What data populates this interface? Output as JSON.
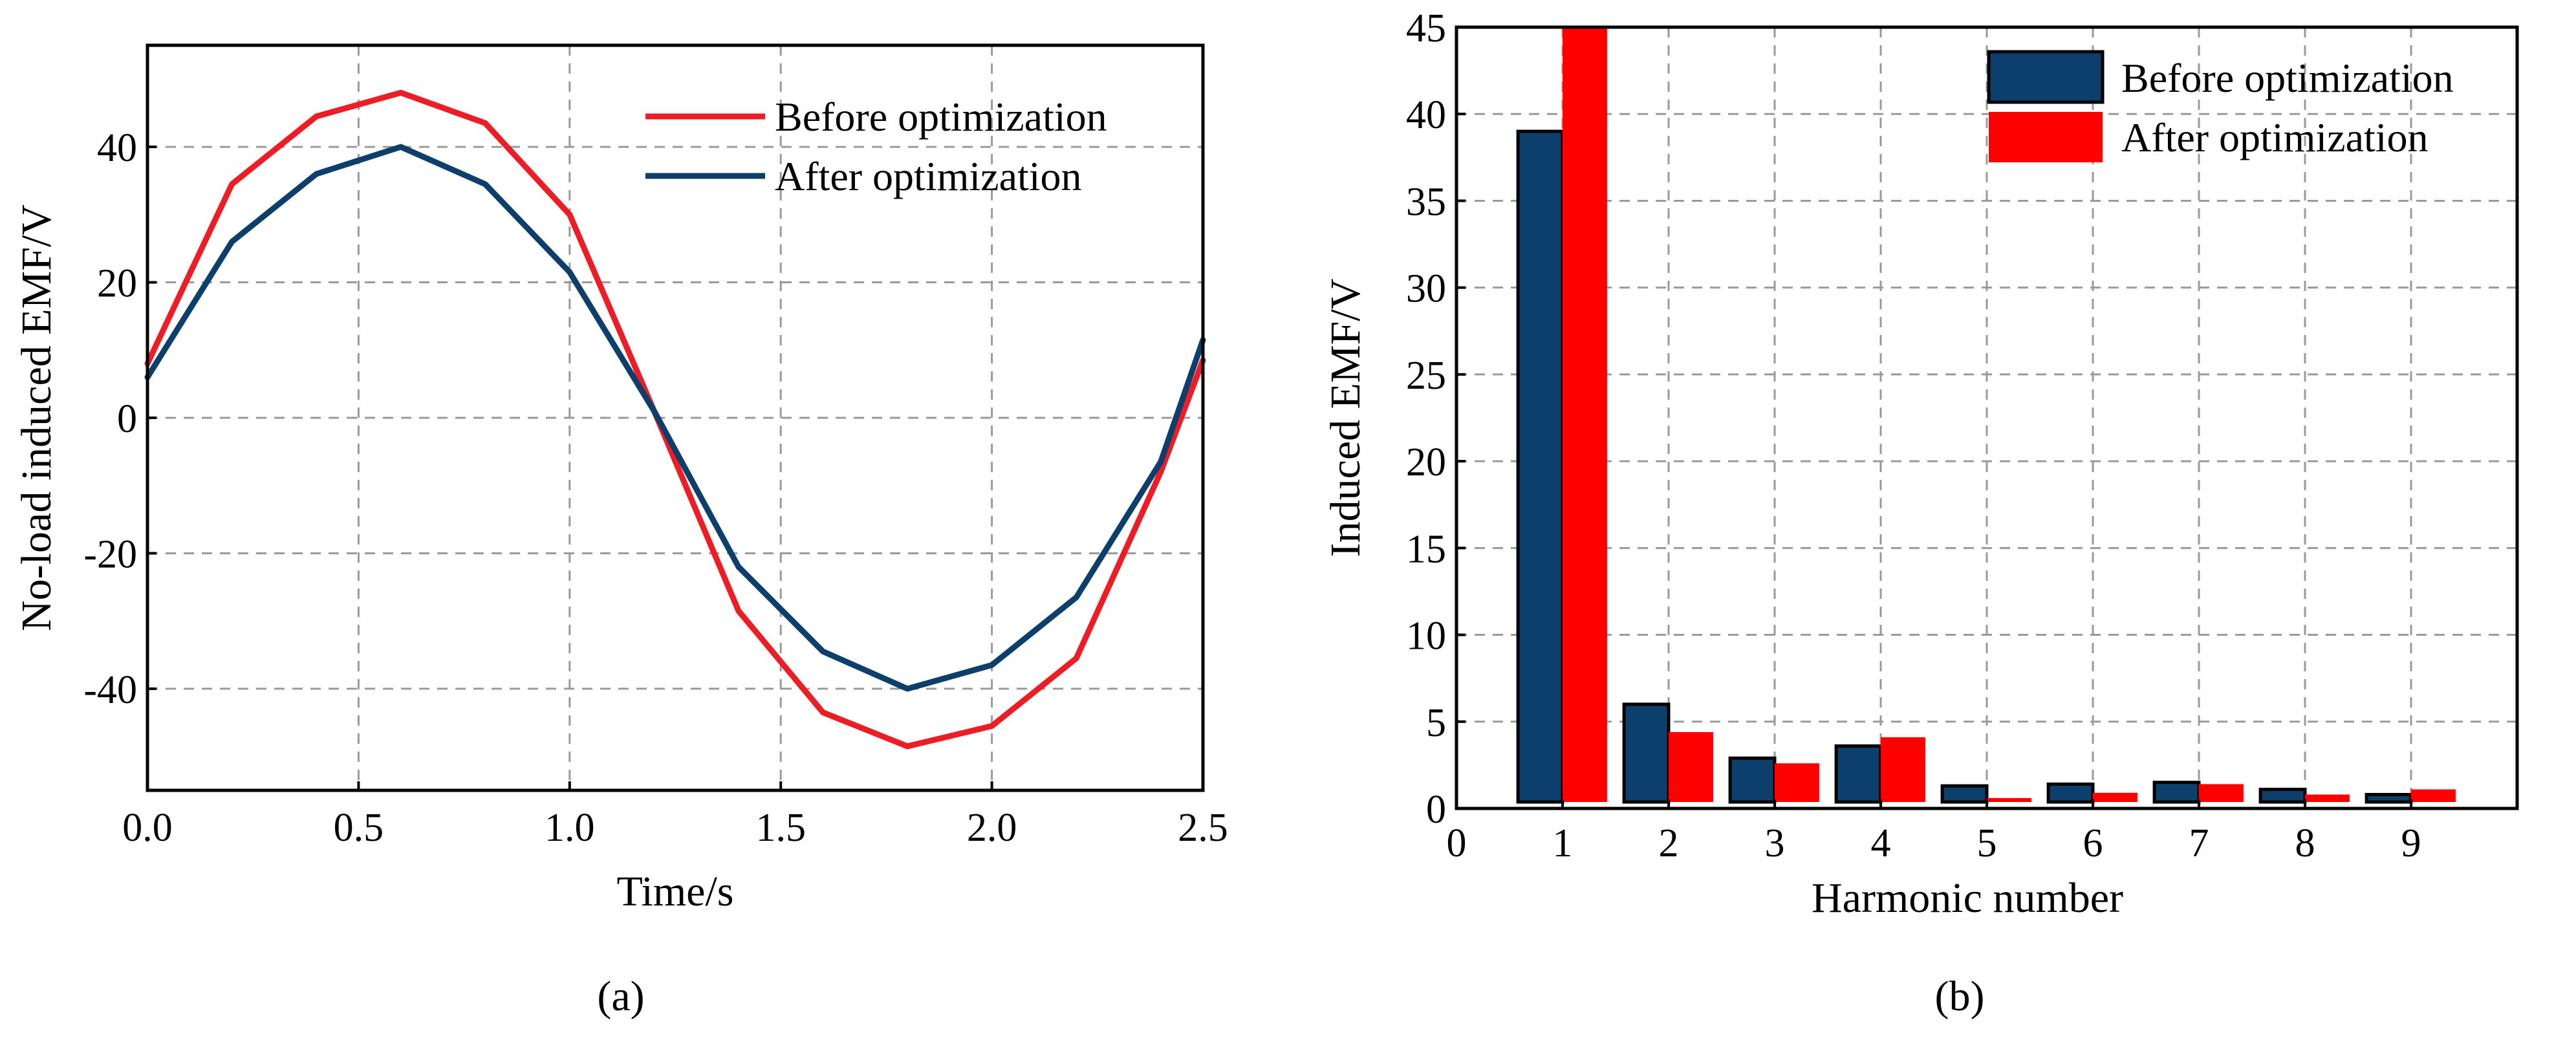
{
  "chart_data": [
    {
      "type": "line",
      "panel": "a",
      "title": "",
      "xlabel": "Time/s",
      "ylabel": "No-load induced EMF/V",
      "xlim": [
        0,
        2.5
      ],
      "ylim": [
        -55,
        55
      ],
      "xticks": [
        0,
        0.5,
        1.0,
        1.5,
        2.0,
        2.5
      ],
      "xtick_labels": [
        "0.0",
        "0.5",
        "1.0",
        "1.5",
        "2.0",
        "2.5"
      ],
      "yticks": [
        40,
        20,
        0,
        -20,
        -40
      ],
      "ytick_labels": [
        "40",
        "20",
        "0",
        "-20",
        "-40"
      ],
      "grid": true,
      "legend_position": "top-right",
      "x": [
        0,
        0.2,
        0.4,
        0.6,
        0.8,
        1.0,
        1.2,
        1.4,
        1.6,
        1.8,
        2.0,
        2.2,
        2.4,
        2.5
      ],
      "series": [
        {
          "name": "Before optimization",
          "color": "#ee1c25",
          "values": [
            8,
            34.5,
            44.5,
            48,
            43.5,
            30,
            1,
            -28.5,
            -43.5,
            -48.5,
            -45.5,
            -35.5,
            -8,
            8.5
          ]
        },
        {
          "name": "After optimization",
          "color": "#0c3f6c",
          "values": [
            6,
            26,
            36,
            40,
            34.5,
            21.5,
            1,
            -22,
            -34.5,
            -40,
            -36.5,
            -26.5,
            -6.5,
            11.5
          ]
        }
      ],
      "caption": "(a)"
    },
    {
      "type": "bar",
      "panel": "b",
      "title": "",
      "xlabel": "Harmonic number",
      "ylabel": "Induced EMF/V",
      "xlim": [
        0,
        10
      ],
      "ylim": [
        0,
        45
      ],
      "xticks": [
        0,
        1,
        2,
        3,
        4,
        5,
        6,
        7,
        8,
        9
      ],
      "xtick_labels": [
        "0",
        "1",
        "2",
        "3",
        "4",
        "5",
        "6",
        "7",
        "8",
        "9"
      ],
      "yticks": [
        0,
        5,
        10,
        15,
        20,
        25,
        30,
        35,
        40,
        45
      ],
      "ytick_labels": [
        "0",
        "5",
        "10",
        "15",
        "20",
        "25",
        "30",
        "35",
        "40",
        "45"
      ],
      "grid": true,
      "legend_position": "top-right",
      "categories": [
        "1",
        "2",
        "3",
        "4",
        "5",
        "6",
        "7",
        "8",
        "9"
      ],
      "series": [
        {
          "name": "Before optimization",
          "color": "#0c3f6c",
          "values": [
            39,
            6,
            2.9,
            3.6,
            1.3,
            1.4,
            1.5,
            1.1,
            0.8
          ]
        },
        {
          "name": "After optimization",
          "color": "#ff0000",
          "values": [
            45,
            4.4,
            2.6,
            4.1,
            0.6,
            0.9,
            1.4,
            0.8,
            1.1
          ]
        }
      ],
      "caption": "(b)"
    }
  ]
}
